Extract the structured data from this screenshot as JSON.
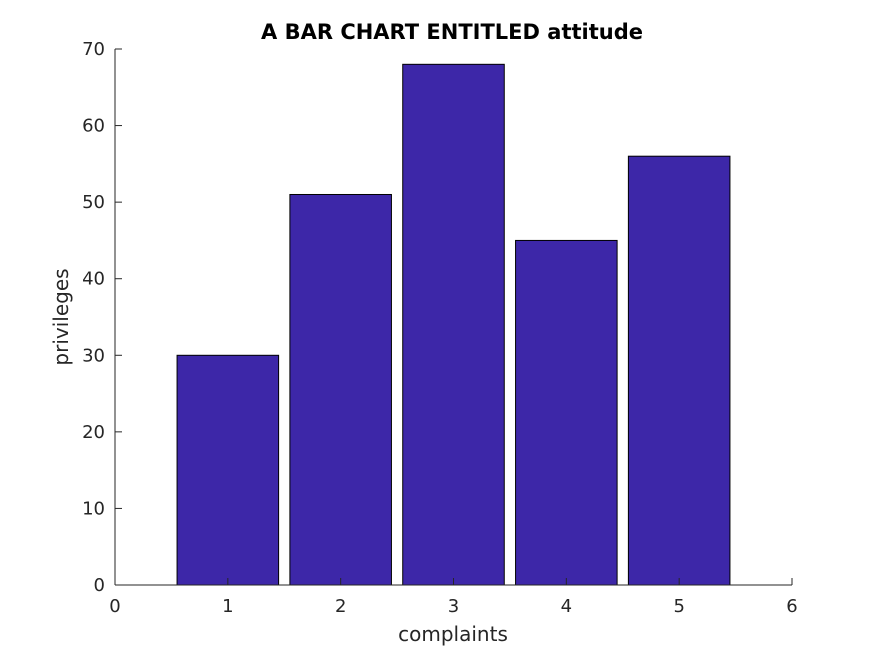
{
  "chart_data": {
    "type": "bar",
    "title": "A BAR CHART ENTITLED attitude",
    "xlabel": "complaints",
    "ylabel": "privileges",
    "x": [
      1,
      2,
      3,
      4,
      5
    ],
    "values": [
      30,
      51,
      68,
      45,
      56
    ],
    "xlim": [
      0,
      6
    ],
    "ylim": [
      0,
      70
    ],
    "xticks": [
      0,
      1,
      2,
      3,
      4,
      5,
      6
    ],
    "yticks": [
      0,
      10,
      20,
      30,
      40,
      50,
      60,
      70
    ],
    "bar_color": "#3d27a8",
    "bar_edge_color": "#000000",
    "grid": false,
    "legend": false
  }
}
